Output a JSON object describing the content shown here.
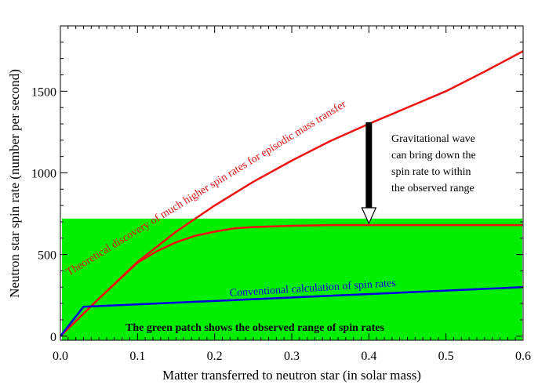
{
  "chart_data": {
    "type": "line",
    "xlabel": "Matter transferred to neutron star (in solar mass)",
    "ylabel": "Neutron star spin rate (number per second)",
    "xlim": [
      0,
      0.6
    ],
    "ylim": [
      -25,
      1900
    ],
    "xticks": [
      "0.0",
      "0.1",
      "0.2",
      "0.3",
      "0.4",
      "0.5",
      "0.6"
    ],
    "yticks": [
      "0",
      "500",
      "1000",
      "1500"
    ],
    "grid": false,
    "observed_range": {
      "y": [
        0,
        720
      ],
      "color": "#00ee00",
      "label": "The green patch shows the observed range of spin rates"
    },
    "series": [
      {
        "label": "Theoretical discovery of much higher spin rates for episodic mass transfer",
        "color": "#ee1111",
        "x": [
          0,
          0.05,
          0.1,
          0.15,
          0.2,
          0.25,
          0.3,
          0.35,
          0.4,
          0.45,
          0.5,
          0.55,
          0.6
        ],
        "y": [
          0,
          230,
          455,
          640,
          800,
          945,
          1075,
          1195,
          1300,
          1400,
          1500,
          1620,
          1745
        ]
      },
      {
        "color": "#ee1111",
        "x": [
          0,
          0.05,
          0.1,
          0.125,
          0.15,
          0.175,
          0.2,
          0.225,
          0.25,
          0.3,
          0.35,
          0.4,
          0.5,
          0.6
        ],
        "y": [
          0,
          230,
          450,
          520,
          575,
          615,
          640,
          660,
          668,
          676,
          680,
          680,
          680,
          680
        ]
      },
      {
        "label": "Conventional calculation of spin rates",
        "color": "#0000dd",
        "x": [
          0,
          0.03,
          0.6
        ],
        "y": [
          0,
          180,
          300
        ]
      }
    ],
    "annotations": [
      {
        "text": [
          "Gravitational wave",
          "can bring down the",
          "spin rate to within",
          "the observed range"
        ],
        "arrow_x": 0.4,
        "arrow_y": [
          1310,
          700
        ]
      }
    ]
  }
}
